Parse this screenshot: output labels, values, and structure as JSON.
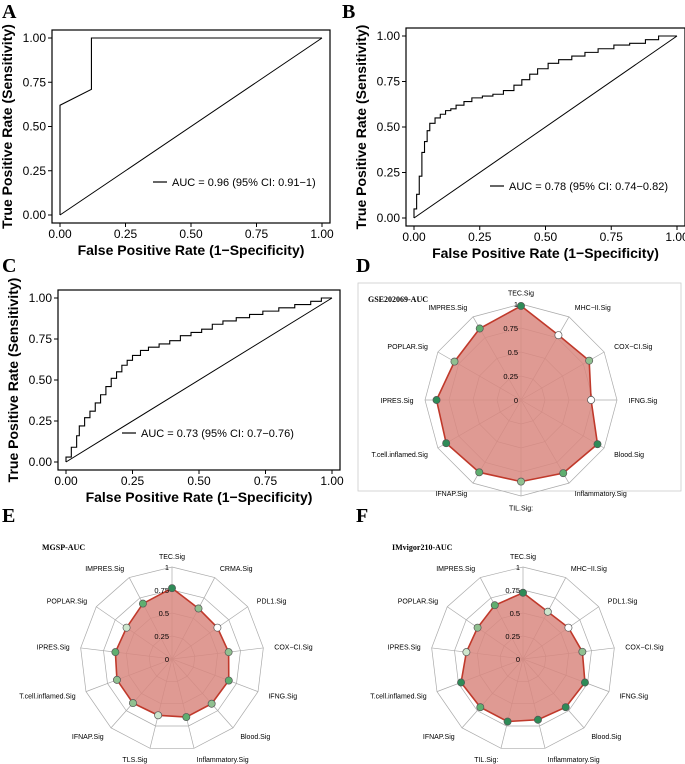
{
  "panels": [
    {
      "letter": "A"
    },
    {
      "letter": "B"
    },
    {
      "letter": "C"
    },
    {
      "letter": "D"
    },
    {
      "letter": "E"
    },
    {
      "letter": "F"
    }
  ],
  "chart_data": [
    {
      "type": "line",
      "panel": "A",
      "xlabel": "False Positive Rate (1−Specificity)",
      "ylabel": "True Positive Rate (Sensitivity)",
      "xlim": [
        0,
        1
      ],
      "ylim": [
        0,
        1
      ],
      "x_ticks": [
        "0.00",
        "0.25",
        "0.50",
        "0.75",
        "1.00"
      ],
      "y_ticks": [
        "0.00",
        "0.25",
        "0.50",
        "0.75",
        "1.00"
      ],
      "legend": "AUC = 0.96 (95% CI: 0.91−1)",
      "series": [
        {
          "name": "ROC",
          "x": [
            0,
            0,
            0.12,
            0.12,
            0.12,
            1
          ],
          "y": [
            0,
            0.62,
            0.71,
            1,
            1,
            1
          ]
        }
      ],
      "reference": {
        "x": [
          0,
          1
        ],
        "y": [
          0,
          1
        ]
      }
    },
    {
      "type": "line",
      "panel": "B",
      "xlabel": "False Positive Rate (1−Specificity)",
      "ylabel": "True Positive Rate (Sensitivity)",
      "xlim": [
        0,
        1
      ],
      "ylim": [
        0,
        1
      ],
      "x_ticks": [
        "0.00",
        "0.25",
        "0.50",
        "0.75",
        "1.00"
      ],
      "y_ticks": [
        "0.00",
        "0.25",
        "0.50",
        "0.75",
        "1.00"
      ],
      "legend": "AUC = 0.78 (95% CI: 0.74−0.82)",
      "series": [
        {
          "name": "ROC",
          "x": [
            0,
            0,
            0.01,
            0.01,
            0.02,
            0.02,
            0.03,
            0.03,
            0.04,
            0.04,
            0.05,
            0.05,
            0.06,
            0.06,
            0.08,
            0.08,
            0.1,
            0.1,
            0.12,
            0.12,
            0.14,
            0.14,
            0.16,
            0.16,
            0.19,
            0.19,
            0.22,
            0.22,
            0.26,
            0.26,
            0.3,
            0.3,
            0.34,
            0.34,
            0.38,
            0.38,
            0.41,
            0.41,
            0.44,
            0.44,
            0.47,
            0.47,
            0.51,
            0.51,
            0.55,
            0.55,
            0.6,
            0.6,
            0.65,
            0.65,
            0.7,
            0.7,
            0.76,
            0.76,
            0.82,
            0.82,
            0.88,
            0.88,
            0.93,
            0.93,
            1
          ],
          "y": [
            0,
            0.05,
            0.05,
            0.13,
            0.13,
            0.23,
            0.23,
            0.36,
            0.36,
            0.42,
            0.42,
            0.48,
            0.48,
            0.52,
            0.52,
            0.55,
            0.55,
            0.57,
            0.57,
            0.59,
            0.59,
            0.6,
            0.6,
            0.62,
            0.62,
            0.64,
            0.64,
            0.66,
            0.66,
            0.67,
            0.67,
            0.68,
            0.68,
            0.7,
            0.7,
            0.73,
            0.73,
            0.76,
            0.76,
            0.79,
            0.79,
            0.82,
            0.82,
            0.85,
            0.85,
            0.87,
            0.87,
            0.89,
            0.89,
            0.91,
            0.91,
            0.93,
            0.93,
            0.95,
            0.95,
            0.96,
            0.96,
            0.98,
            0.98,
            1,
            1
          ]
        }
      ],
      "reference": {
        "x": [
          0,
          1
        ],
        "y": [
          0,
          1
        ]
      }
    },
    {
      "type": "line",
      "panel": "C",
      "xlabel": "False Positive Rate (1−Specificity)",
      "ylabel": "True Positive Rate (Sensitivity)",
      "xlim": [
        0,
        1
      ],
      "ylim": [
        0,
        1
      ],
      "x_ticks": [
        "0.00",
        "0.25",
        "0.50",
        "0.75",
        "1.00"
      ],
      "y_ticks": [
        "0.00",
        "0.25",
        "0.50",
        "0.75",
        "1.00"
      ],
      "legend": "AUC = 0.73 (95% CI: 0.7−0.76)",
      "series": [
        {
          "name": "ROC",
          "x": [
            0,
            0,
            0.02,
            0.02,
            0.04,
            0.04,
            0.05,
            0.05,
            0.07,
            0.07,
            0.09,
            0.09,
            0.11,
            0.11,
            0.13,
            0.13,
            0.15,
            0.15,
            0.17,
            0.17,
            0.19,
            0.19,
            0.21,
            0.21,
            0.23,
            0.23,
            0.25,
            0.25,
            0.28,
            0.28,
            0.31,
            0.31,
            0.35,
            0.35,
            0.39,
            0.39,
            0.43,
            0.43,
            0.47,
            0.47,
            0.51,
            0.51,
            0.55,
            0.55,
            0.59,
            0.59,
            0.64,
            0.64,
            0.69,
            0.69,
            0.74,
            0.74,
            0.8,
            0.8,
            0.86,
            0.86,
            0.92,
            0.92,
            0.96,
            0.96,
            1
          ],
          "y": [
            0,
            0.03,
            0.03,
            0.09,
            0.09,
            0.16,
            0.16,
            0.22,
            0.22,
            0.27,
            0.27,
            0.31,
            0.31,
            0.36,
            0.36,
            0.41,
            0.41,
            0.46,
            0.46,
            0.51,
            0.51,
            0.55,
            0.55,
            0.59,
            0.59,
            0.62,
            0.62,
            0.65,
            0.65,
            0.68,
            0.68,
            0.7,
            0.7,
            0.72,
            0.72,
            0.74,
            0.74,
            0.77,
            0.77,
            0.79,
            0.79,
            0.81,
            0.81,
            0.84,
            0.84,
            0.86,
            0.86,
            0.88,
            0.88,
            0.9,
            0.9,
            0.92,
            0.92,
            0.94,
            0.94,
            0.96,
            0.96,
            0.98,
            0.98,
            1,
            1
          ]
        }
      ],
      "reference": {
        "x": [
          0,
          1
        ],
        "y": [
          0,
          1
        ]
      }
    },
    {
      "type": "radar",
      "panel": "D",
      "title": "GSE202069-AUC",
      "ring_labels": [
        "0",
        "0.25",
        "0.5",
        "0.75",
        "1"
      ],
      "axes": [
        "TEC.Sig",
        "MHC−II.Sig",
        "COX−CI.Sig",
        "IFNG.Sig",
        "Blood.Sig",
        "Inflammatory.Sig",
        "TIL.Sig:",
        "IFNAP.Sig",
        "T.cell.inflamed.Sig",
        "IPRES.Sig",
        "POPLAR.Sig",
        "IMPRES.Sig"
      ],
      "values": [
        0.98,
        0.78,
        0.82,
        0.73,
        0.92,
        0.88,
        0.85,
        0.87,
        0.9,
        0.88,
        0.8,
        0.86
      ],
      "point_colors": [
        "#2e8b57",
        "#ffffff",
        "#90c090",
        "#ffffff",
        "#2e8b57",
        "#5fae6f",
        "#90c090",
        "#5fae6f",
        "#2e8b57",
        "#2e8b57",
        "#90c090",
        "#5fae6f"
      ]
    },
    {
      "type": "radar",
      "panel": "E",
      "title": "MGSP-AUC",
      "ring_labels": [
        "0",
        "0.25",
        "0.5",
        "0.75",
        "1"
      ],
      "axes": [
        "TEC.Sig",
        "CRMA.Sig",
        "PDL1.Sig",
        "COX−CI.Sig",
        "IFNG.Sig",
        "Blood.Sig",
        "Inflammatory.Sig",
        "TLS.Sig",
        "IFNAP.Sig",
        "T.cell.inflamed.Sig",
        "IPRES.Sig",
        "POPLAR.Sig",
        "IMPRES.Sig"
      ],
      "values": [
        0.77,
        0.62,
        0.6,
        0.62,
        0.66,
        0.65,
        0.65,
        0.63,
        0.64,
        0.64,
        0.62,
        0.6,
        0.68
      ],
      "point_colors": [
        "#2e8b57",
        "#90c090",
        "#ffffff",
        "#90c090",
        "#5fae6f",
        "#90c090",
        "#5fae6f",
        "#cde6cd",
        "#90c090",
        "#90c090",
        "#5fae6f",
        "#cde6cd",
        "#5fae6f"
      ]
    },
    {
      "type": "radar",
      "panel": "F",
      "title": "IMvigor210-AUC",
      "ring_labels": [
        "0",
        "0.25",
        "0.5",
        "0.75",
        "1"
      ],
      "axes": [
        "TEC.Sig",
        "MHC−II.Sig",
        "PDL1.Sig",
        "COX−CI.Sig",
        "IFNG.Sig",
        "Blood.Sig",
        "Inflammatory.Sig",
        "TIL.Sig:",
        "IFNAP.Sig",
        "T.cell.inflamed.Sig",
        "IPRES.Sig",
        "POPLAR.Sig",
        "IMPRES.Sig"
      ],
      "values": [
        0.72,
        0.58,
        0.6,
        0.65,
        0.72,
        0.7,
        0.68,
        0.7,
        0.7,
        0.72,
        0.62,
        0.6,
        0.66
      ],
      "point_colors": [
        "#2e8b57",
        "#cde6cd",
        "#ffffff",
        "#90c090",
        "#2e8b57",
        "#2e8b57",
        "#2e8b57",
        "#2e8b57",
        "#5fae6f",
        "#2e8b57",
        "#cde6cd",
        "#90c090",
        "#5fae6f"
      ]
    }
  ],
  "colors": {
    "roc_line": "#000000",
    "radar_fill": "#d98880",
    "radar_line": "#c0392b",
    "grid": "#aaaaaa"
  }
}
